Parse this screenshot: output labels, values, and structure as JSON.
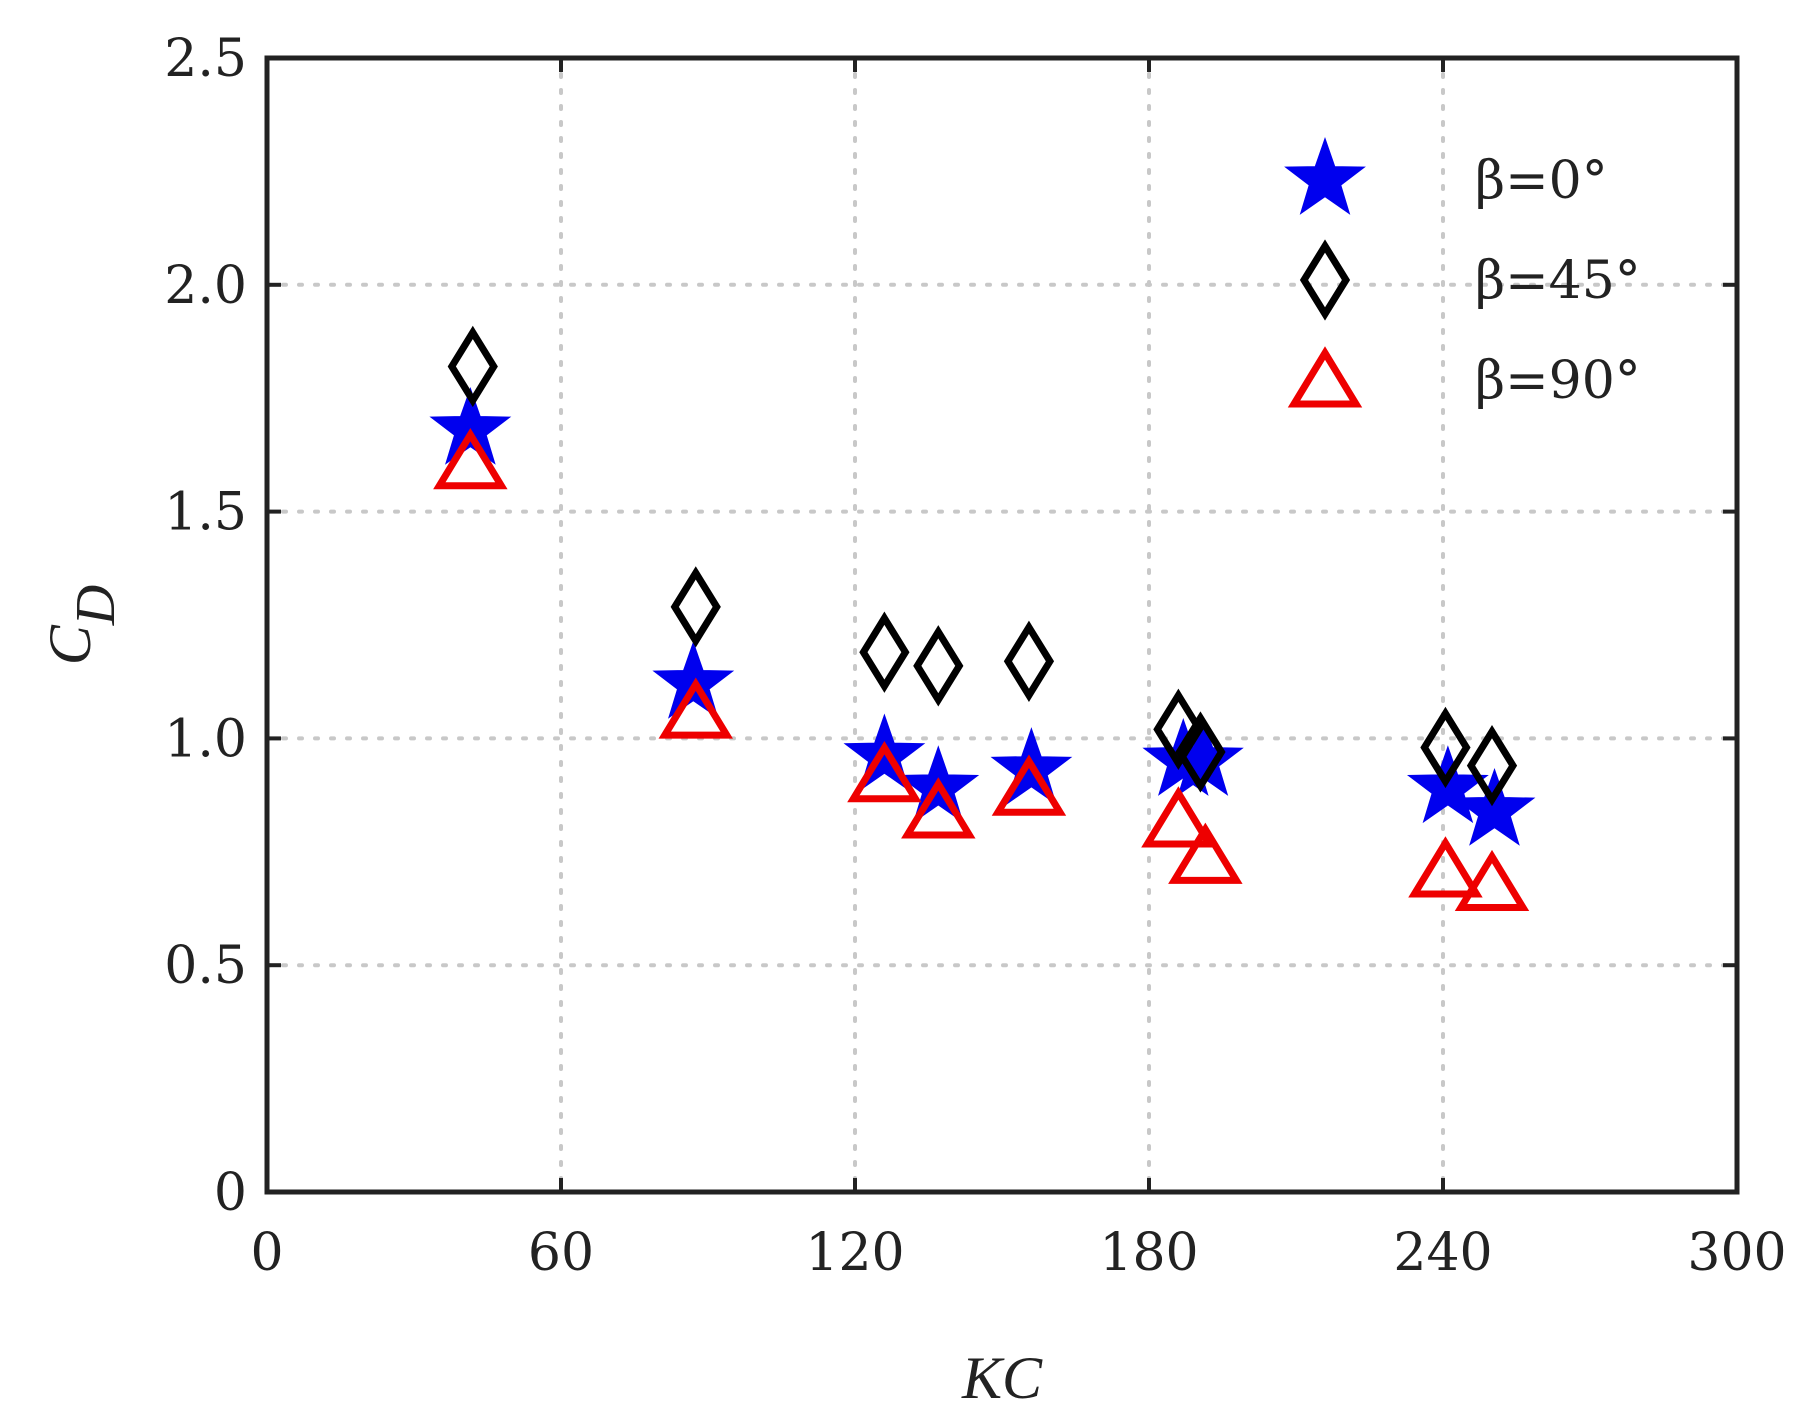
{
  "chart_data": {
    "type": "scatter",
    "xlabel": "KC",
    "ylabel_main": "C",
    "ylabel_sub": "D",
    "xlim": [
      0,
      300
    ],
    "ylim": [
      0,
      2.5
    ],
    "xticks": [
      0,
      60,
      120,
      180,
      240,
      300
    ],
    "yticks": [
      0,
      0.5,
      1.0,
      1.5,
      2.0,
      2.5
    ],
    "xtick_labels": [
      "0",
      "60",
      "120",
      "180",
      "240",
      "300"
    ],
    "ytick_labels": [
      "0",
      "0.5",
      "1.0",
      "1.5",
      "2.0",
      "2.5"
    ],
    "grid": true,
    "legend_position": "top-right",
    "series": [
      {
        "name": "β=0°",
        "marker": "star",
        "color": "#0000ee",
        "x": [
          41.5,
          87,
          126,
          137,
          156,
          187,
          191,
          241,
          250.5
        ],
        "y": [
          1.68,
          1.12,
          0.96,
          0.89,
          0.93,
          0.95,
          0.95,
          0.89,
          0.84
        ]
      },
      {
        "name": "β=45°",
        "marker": "diamond",
        "color": "#000000",
        "x": [
          42,
          87.5,
          126,
          137,
          155.5,
          186,
          190.5,
          240.5,
          250
        ],
        "y": [
          1.82,
          1.29,
          1.19,
          1.16,
          1.17,
          1.02,
          0.97,
          0.98,
          0.94
        ]
      },
      {
        "name": "β=90°",
        "marker": "triangle",
        "color": "#ee0000",
        "x": [
          41.5,
          87.5,
          126,
          137,
          155.5,
          186,
          191.5,
          240.5,
          250
        ],
        "y": [
          1.61,
          1.06,
          0.92,
          0.84,
          0.89,
          0.82,
          0.74,
          0.71,
          0.68
        ]
      }
    ]
  }
}
